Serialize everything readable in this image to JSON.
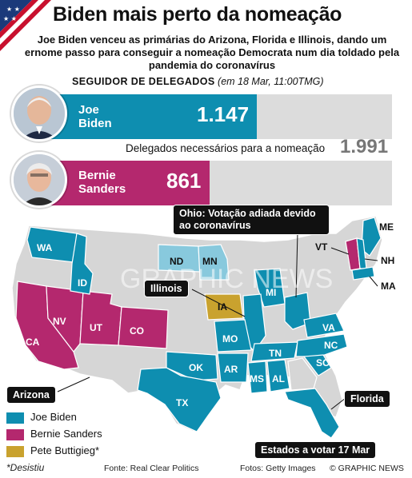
{
  "title": "Biden mais perto da nomeação",
  "subtitle": "Joe Biden venceu as primárias do Arizona, Florida e Illinois, dando um ernome passo para conseguir a nomeação Democrata num dia toldado pela pandemia do coronavírus",
  "tracker": {
    "label": "Seguidor de Delegados",
    "note": "(em 18 Mar, 11:00TMG)"
  },
  "candidates": [
    {
      "name_line1": "Joe",
      "name_line2": "Biden",
      "delegates": "1.147",
      "delegates_num": 1147,
      "color": "#0e8eb0"
    },
    {
      "name_line1": "Bernie",
      "name_line2": "Sanders",
      "delegates": "861",
      "delegates_num": 861,
      "color": "#b4286e"
    }
  ],
  "needed": {
    "label": "Delegados necessários para a nomeação",
    "value": "1.991",
    "value_num": 1991
  },
  "map": {
    "state_labels": [
      "WA",
      "ID",
      "ND",
      "MN",
      "IA",
      "MI",
      "CA",
      "NV",
      "UT",
      "CO",
      "MO",
      "OK",
      "AR",
      "TN",
      "MS",
      "AL",
      "TX",
      "VA",
      "NC",
      "SC",
      "ME",
      "VT",
      "NH",
      "MA"
    ],
    "callouts": {
      "ohio": "Ohio: Votação adiada devido ao coronavírus",
      "illinois": "Illinois",
      "arizona": "Arizona",
      "florida": "Florida",
      "march17": "Estados a votar 17 Mar"
    },
    "watermark": "GRAPHIC NEWS"
  },
  "legend": [
    {
      "label": "Joe Biden",
      "color": "#0e8eb0"
    },
    {
      "label": "Bernie Sanders",
      "color": "#b4286e"
    },
    {
      "label": "Pete Buttigieg*",
      "color": "#c9a22e"
    }
  ],
  "footer": {
    "note": "*Desistiu",
    "source": "Fonte: Real Clear Politics",
    "photos": "Fotos: Getty Images",
    "credit": "© GRAPHIC NEWS"
  }
}
